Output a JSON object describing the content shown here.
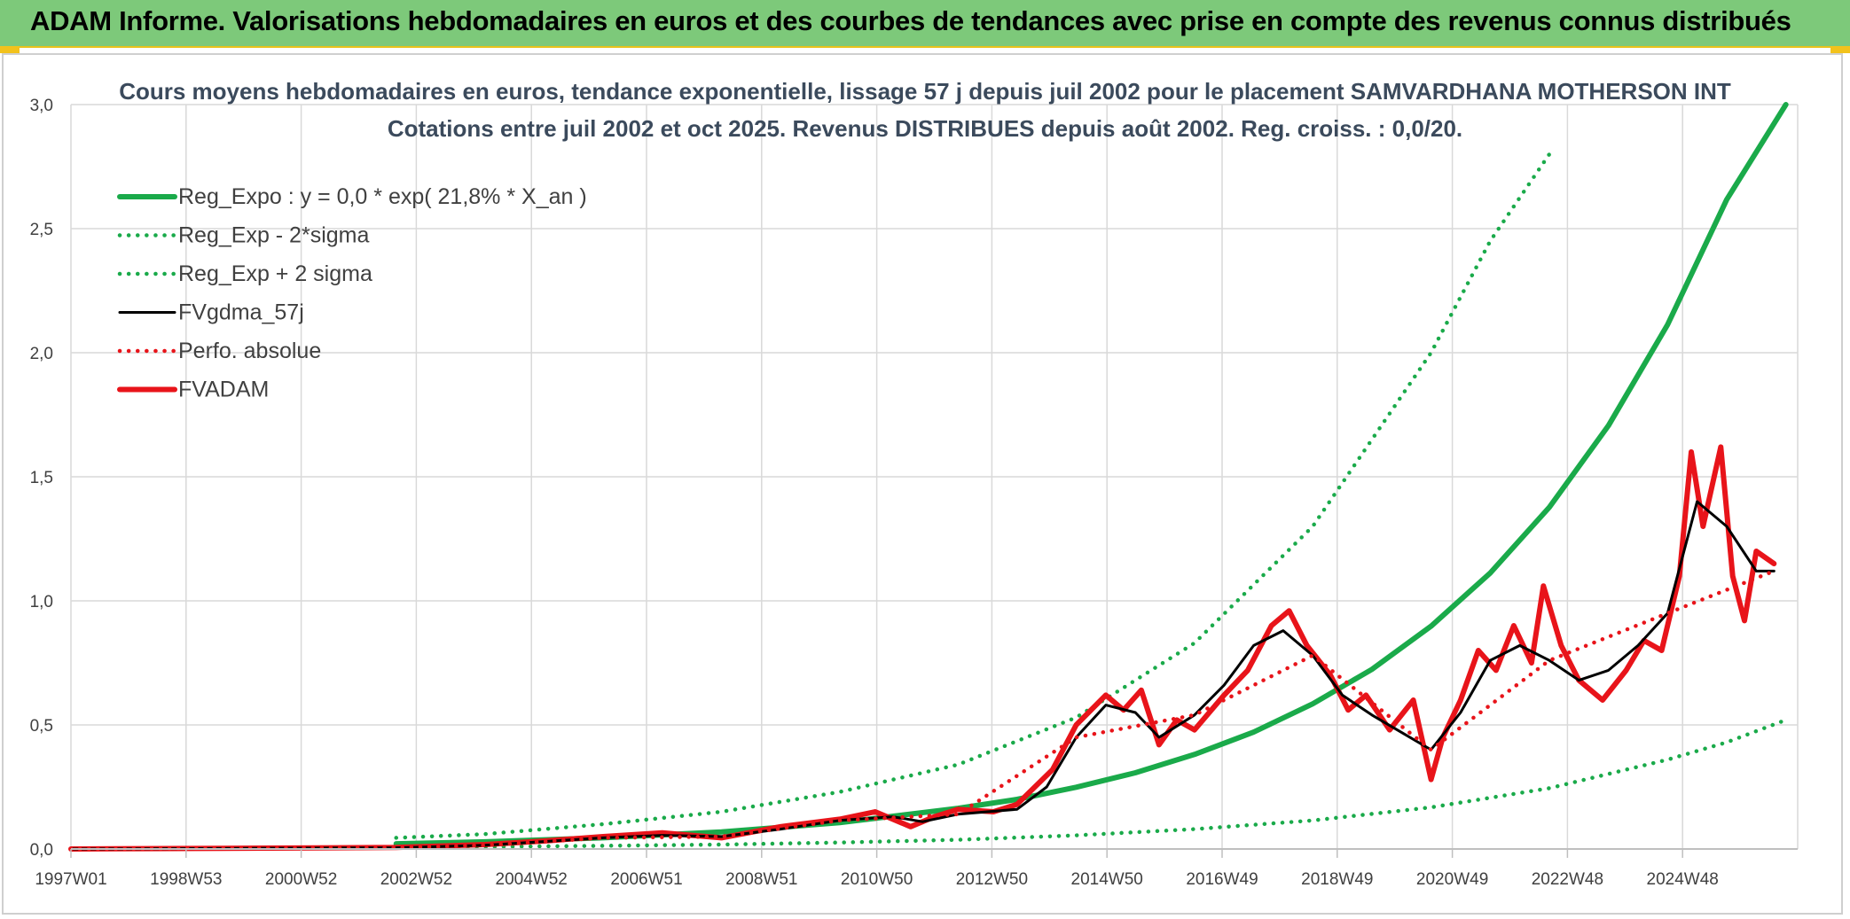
{
  "banner": {
    "title": "ADAM Informe. Valorisations hebdomadaires en euros et des courbes de tendances avec prise en compte des revenus connus distribués"
  },
  "colors": {
    "banner_bg": "#7dc97a",
    "regression": "#1aaa4a",
    "fv57": "#000000",
    "fvadam": "#e8141a",
    "perf": "#e8141a"
  },
  "chart_data": {
    "type": "line",
    "title": "Cours moyens hebdomadaires en euros, tendance exponentielle, lissage 57 j depuis juil 2002 pour le placement SAMVARDHANA MOTHERSON INT",
    "subtitle": "Cotations entre juil 2002 et oct 2025. Revenus DISTRIBUES depuis août 2002. Reg. croiss. : 0,0/20.",
    "xlabel": "",
    "ylabel": "",
    "x_ticks": [
      "1997W01",
      "1998W53",
      "2000W52",
      "2002W52",
      "2004W52",
      "2006W51",
      "2008W51",
      "2010W50",
      "2012W50",
      "2014W50",
      "2016W49",
      "2018W49",
      "2020W49",
      "2022W48",
      "2024W48"
    ],
    "x_range": [
      1997.0,
      2026.2
    ],
    "ylim": [
      0,
      3.0
    ],
    "y_ticks": [
      0.0,
      0.5,
      1.0,
      1.5,
      2.0,
      2.5,
      3.0
    ],
    "y_tick_labels": [
      "0,0",
      "0,5",
      "1,0",
      "1,5",
      "2,0",
      "2,5",
      "3,0"
    ],
    "grid": true,
    "legend_position": "top-left",
    "series": [
      {
        "name": "Reg_Expo : y = 0,0 * exp( 21,8% *  X_an )",
        "style": "solid-thick",
        "color": "#1aaa4a",
        "x": [
          2002.5,
          2004,
          2006,
          2008,
          2010,
          2012,
          2013,
          2014,
          2015,
          2016,
          2017,
          2018,
          2019,
          2020,
          2021,
          2022,
          2023,
          2024,
          2025,
          2026
        ],
        "y": [
          0.021,
          0.029,
          0.045,
          0.069,
          0.106,
          0.164,
          0.2,
          0.249,
          0.307,
          0.381,
          0.471,
          0.585,
          0.724,
          0.898,
          1.112,
          1.377,
          1.706,
          2.113,
          2.617,
          3.242
        ]
      },
      {
        "name": "Reg_Exp - 2*sigma",
        "style": "dotted",
        "color": "#1aaa4a",
        "x": [
          2002.5,
          2004,
          2006,
          2008,
          2010,
          2012,
          2014,
          2016,
          2018,
          2020,
          2022,
          2024,
          2025,
          2026
        ],
        "y": [
          0.007,
          0.009,
          0.013,
          0.018,
          0.026,
          0.037,
          0.055,
          0.08,
          0.115,
          0.168,
          0.245,
          0.36,
          0.43,
          0.52
        ]
      },
      {
        "name": "Reg_Exp + 2 sigma",
        "style": "dotted",
        "color": "#1aaa4a",
        "x": [
          2002.5,
          2004,
          2006,
          2008,
          2010,
          2012,
          2014,
          2016,
          2018,
          2020,
          2021,
          2022
        ],
        "y": [
          0.045,
          0.06,
          0.1,
          0.15,
          0.23,
          0.34,
          0.53,
          0.83,
          1.3,
          2.0,
          2.45,
          2.8
        ]
      },
      {
        "name": "FVgdma_57j",
        "style": "solid",
        "color": "#000000",
        "x": [
          1997.0,
          2002.5,
          2004,
          2005,
          2006,
          2007,
          2008,
          2009,
          2010,
          2010.9,
          2011.4,
          2012,
          2013,
          2013.5,
          2014,
          2014.5,
          2015,
          2015.4,
          2016,
          2016.5,
          2017,
          2017.5,
          2018,
          2018.5,
          2019,
          2019.5,
          2020,
          2020.5,
          2021,
          2021.5,
          2022,
          2022.5,
          2023,
          2023.5,
          2024,
          2024.5,
          2025,
          2025.5,
          2025.8
        ],
        "y": [
          0,
          0.005,
          0.015,
          0.03,
          0.045,
          0.055,
          0.05,
          0.08,
          0.115,
          0.13,
          0.11,
          0.14,
          0.16,
          0.25,
          0.45,
          0.58,
          0.55,
          0.45,
          0.54,
          0.66,
          0.82,
          0.88,
          0.78,
          0.62,
          0.54,
          0.47,
          0.4,
          0.55,
          0.76,
          0.82,
          0.76,
          0.68,
          0.72,
          0.82,
          0.95,
          1.4,
          1.3,
          1.12,
          1.12
        ]
      },
      {
        "name": "Perfo. absolue",
        "style": "dotted",
        "color": "#e8141a",
        "x": [
          1997.0,
          2002.5,
          2004,
          2006,
          2008,
          2010,
          2012,
          2014,
          2016,
          2018,
          2020,
          2022,
          2024,
          2025.8
        ],
        "y": [
          0,
          0.005,
          0.015,
          0.045,
          0.05,
          0.115,
          0.14,
          0.45,
          0.54,
          0.78,
          0.4,
          0.76,
          0.95,
          1.12
        ]
      },
      {
        "name": "FVADAM",
        "style": "solid-thick",
        "color": "#e8141a",
        "x": [
          1997.0,
          2002.5,
          2004,
          2005,
          2006,
          2007,
          2008,
          2009,
          2010,
          2010.6,
          2011.2,
          2011.6,
          2012,
          2012.6,
          2013,
          2013.6,
          2014,
          2014.5,
          2014.8,
          2015.1,
          2015.4,
          2015.7,
          2016,
          2016.5,
          2016.9,
          2017.3,
          2017.6,
          2017.9,
          2018.3,
          2018.6,
          2018.9,
          2019.3,
          2019.7,
          2020.0,
          2020.2,
          2020.5,
          2020.8,
          2021.1,
          2021.4,
          2021.7,
          2021.9,
          2022.2,
          2022.5,
          2022.9,
          2023.3,
          2023.6,
          2023.9,
          2024.2,
          2024.4,
          2024.6,
          2024.9,
          2025.1,
          2025.3,
          2025.5,
          2025.8
        ],
        "y": [
          0,
          0.006,
          0.018,
          0.032,
          0.05,
          0.065,
          0.045,
          0.09,
          0.12,
          0.15,
          0.09,
          0.13,
          0.16,
          0.15,
          0.18,
          0.32,
          0.5,
          0.62,
          0.56,
          0.64,
          0.42,
          0.52,
          0.48,
          0.62,
          0.72,
          0.9,
          0.96,
          0.82,
          0.7,
          0.56,
          0.62,
          0.48,
          0.6,
          0.28,
          0.45,
          0.6,
          0.8,
          0.72,
          0.9,
          0.75,
          1.06,
          0.82,
          0.68,
          0.6,
          0.72,
          0.84,
          0.8,
          1.1,
          1.6,
          1.3,
          1.62,
          1.1,
          0.92,
          1.2,
          1.15
        ]
      }
    ]
  }
}
